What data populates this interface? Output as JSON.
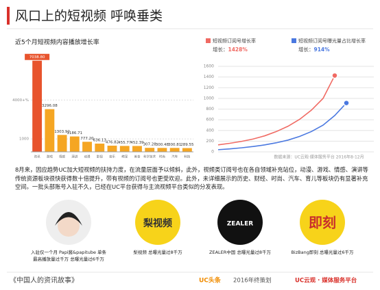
{
  "header": {
    "title": "风口上的短视频 呼唤垂类"
  },
  "chart_data": [
    {
      "type": "bar",
      "title": "近5个月短视频内容播放增长率",
      "categories": [
        "资讯",
        "游戏",
        "情感",
        "演讲",
        "动漫",
        "影视",
        "音乐",
        "萌宠",
        "美食",
        "科学技术",
        "时尚",
        "汽车",
        "科技"
      ],
      "values": [
        7038.8,
        3296.08,
        1303.92,
        1186.71,
        777.2,
        636.13,
        476.82,
        455.77,
        452.39,
        307.28,
        300.48,
        300.81,
        289.55
      ],
      "value_labels": [
        "7038.80",
        "3296.08",
        "1303.92",
        "1186.71",
        "777.20",
        "636.13",
        "476.82",
        "455.77",
        "452.39",
        "307.28",
        "300.48",
        "300.81",
        "289.55"
      ],
      "colors": [
        "#e8542d",
        "#f5a623",
        "#f5a623",
        "#f5a623",
        "#f5a623",
        "#f5a623",
        "#f5a623",
        "#f5a623",
        "#f5a623",
        "#f5a623",
        "#f5a623",
        "#f5a623",
        "#f5a623"
      ],
      "ylim": [
        0,
        7500
      ],
      "yticks": [
        1000,
        {
          "value": 4000,
          "label": "4000+%"
        }
      ],
      "grid": true
    },
    {
      "type": "line",
      "categories": [
        null,
        null,
        null,
        null,
        null,
        null,
        null,
        null,
        null,
        null,
        null,
        null
      ],
      "growth_prefix": "增长：",
      "series": [
        {
          "name": "短视频订阅号增长率",
          "color": "#f06a63",
          "values": [
            130,
            160,
            195,
            240,
            300,
            380,
            480,
            610,
            780,
            1000,
            1428,
            null
          ],
          "value_labels": [
            null,
            null,
            null,
            null,
            null,
            null,
            null,
            null,
            null,
            null,
            "1428%",
            null
          ]
        },
        {
          "name": "短视频订阅号曝光量占比增长率",
          "color": "#4a78e0",
          "values": [
            40,
            55,
            75,
            100,
            130,
            170,
            220,
            290,
            380,
            500,
            680,
            914
          ],
          "value_labels": [
            null,
            null,
            null,
            null,
            null,
            null,
            null,
            null,
            null,
            null,
            null,
            "914%"
          ]
        }
      ],
      "ylim": [
        0,
        1600
      ],
      "yticks": [
        0,
        200,
        400,
        600,
        800,
        1000,
        1200,
        1400,
        1600
      ],
      "grid": true,
      "source": "数据来源：UC云观·媒体服务平台 2016年8-12月"
    }
  ],
  "paragraph": "8月来，因应趋势UC加大短视频的扶持力度，在流量层面予以倾斜，此外，视频类订阅号也在各自领域补充站位，动漫、游戏、情感、演讲等传统资源板块很快获得数十倍提升，带有视频的订阅号也更受欢迎。此外，未详细展示的历史、财经、时尚、汽车、育儿等板块仍有显著补充空间。一批头部账号入驻不久，已经在UC平台获得与主流视频平台类似的分发表现。",
  "cards": [
    {
      "logo": "",
      "caption": [
        "入驻仅一个月 Papi酱&papitube 单条",
        "最高播放量过千万 总曝光量过6千万"
      ]
    },
    {
      "logo": "梨视频",
      "caption": [
        "梨视频 总曝光量过8千万"
      ]
    },
    {
      "logo": "ZEALER",
      "caption": [
        "ZEALER中国 总曝光量过8千万"
      ]
    },
    {
      "logo": "即刻",
      "caption": [
        "BizBang即刻 总曝光量过6千万"
      ]
    }
  ],
  "footer": {
    "left": "《中国人的资讯故事》",
    "brand": "UC头条",
    "middle": "2016年终策划",
    "right": "UC云观 · 媒体服务平台"
  }
}
